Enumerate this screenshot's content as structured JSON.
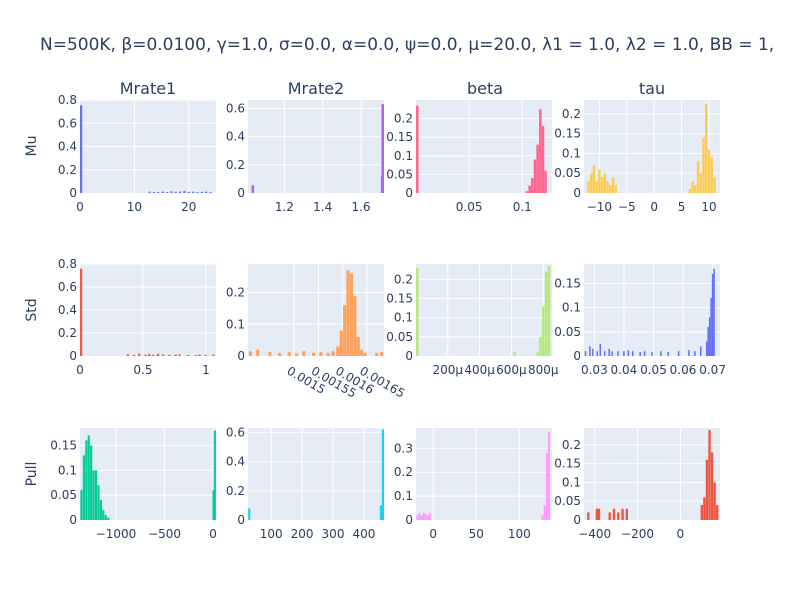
{
  "title": "N=500K, β=0.0100, γ=1.0, σ=0.0,  α=0.0, ψ=0.0, μ=20.0, λ1 = 1.0, λ2 = 1.0, BB = 1,",
  "column_titles": [
    "Mrate1",
    "Mrate2",
    "beta",
    "tau"
  ],
  "row_titles": [
    "Mu",
    "Std",
    "Pull"
  ],
  "colors": {
    "plot_bg": "#E5ECF6",
    "grid": "#ffffff",
    "text": "#2a3f5f"
  },
  "chart_data": [
    {
      "type": "bar",
      "name": "Mu-Mrate1",
      "row": 0,
      "col": 0,
      "color": "#636efa",
      "xlim": [
        0,
        25
      ],
      "ylim": [
        0,
        0.8
      ],
      "bar_width": 0.4,
      "xticks": [
        {
          "v": 0,
          "t": "0"
        },
        {
          "v": 10,
          "t": "10"
        },
        {
          "v": 20,
          "t": "20"
        }
      ],
      "yticks": [
        {
          "v": 0,
          "t": "0"
        },
        {
          "v": 0.2,
          "t": "0.2"
        },
        {
          "v": 0.4,
          "t": "0.4"
        },
        {
          "v": 0.6,
          "t": "0.6"
        },
        {
          "v": 0.8,
          "t": "0.8"
        }
      ],
      "x": [
        0.2,
        12.8,
        13.6,
        14.4,
        15.2,
        16.0,
        16.8,
        17.6,
        18.4,
        19.2,
        20.0,
        20.8,
        21.6,
        22.4,
        23.2,
        24.0
      ],
      "values": [
        0.755,
        0.012,
        0.008,
        0.01,
        0.012,
        0.008,
        0.015,
        0.01,
        0.012,
        0.018,
        0.01,
        0.012,
        0.008,
        0.01,
        0.012,
        0.008
      ]
    },
    {
      "type": "bar",
      "name": "Mu-Mrate2",
      "row": 0,
      "col": 1,
      "color": "#ab63fa",
      "xlim": [
        1.01,
        1.72
      ],
      "ylim": [
        0,
        0.66
      ],
      "bar_width": 0.013,
      "xticks": [
        {
          "v": 1.2,
          "t": "1.2"
        },
        {
          "v": 1.4,
          "t": "1.4"
        },
        {
          "v": 1.6,
          "t": "1.6"
        }
      ],
      "yticks": [
        {
          "v": 0,
          "t": "0"
        },
        {
          "v": 0.2,
          "t": "0.2"
        },
        {
          "v": 0.4,
          "t": "0.4"
        },
        {
          "v": 0.6,
          "t": "0.6"
        }
      ],
      "x": [
        1.035,
        1.71,
        1.718
      ],
      "values": [
        0.055,
        0.125,
        0.63
      ]
    },
    {
      "type": "bar",
      "name": "Mu-beta",
      "row": 0,
      "col": 2,
      "color": "#ff6692",
      "xlim": [
        0.0,
        0.128
      ],
      "ylim": [
        0,
        0.25
      ],
      "bar_width": 0.0024,
      "xticks": [
        {
          "v": 0.05,
          "t": "0.05"
        },
        {
          "v": 0.1,
          "t": "0.1"
        }
      ],
      "yticks": [
        {
          "v": 0,
          "t": "0"
        },
        {
          "v": 0.05,
          "t": "0.05"
        },
        {
          "v": 0.1,
          "t": "0.1"
        },
        {
          "v": 0.15,
          "t": "0.15"
        },
        {
          "v": 0.2,
          "t": "0.2"
        }
      ],
      "x": [
        0.0012,
        0.1045,
        0.107,
        0.1095,
        0.112,
        0.1145,
        0.117,
        0.1195,
        0.122
      ],
      "values": [
        0.235,
        0.005,
        0.02,
        0.04,
        0.09,
        0.13,
        0.225,
        0.18,
        0.06
      ]
    },
    {
      "type": "bar",
      "name": "Mu-tau",
      "row": 0,
      "col": 3,
      "color": "#fecb52",
      "xlim": [
        -12.8,
        12
      ],
      "ylim": [
        0,
        0.235
      ],
      "bar_width": 0.44,
      "xticks": [
        {
          "v": -10,
          "t": "−10"
        },
        {
          "v": -5,
          "t": "−5"
        },
        {
          "v": 0,
          "t": "0"
        },
        {
          "v": 5,
          "t": "5"
        },
        {
          "v": 10,
          "t": "10"
        }
      ],
      "yticks": [
        {
          "v": 0,
          "t": "0"
        },
        {
          "v": 0.05,
          "t": "0.05"
        },
        {
          "v": 0.1,
          "t": "0.1"
        },
        {
          "v": 0.15,
          "t": "0.15"
        },
        {
          "v": 0.2,
          "t": "0.2"
        }
      ],
      "x": [
        -12.0,
        -11.5,
        -11.0,
        -10.5,
        -10.0,
        -9.5,
        -9.0,
        -8.5,
        -8.0,
        -7.5,
        -7.0,
        6.5,
        7.0,
        7.5,
        8.0,
        8.5,
        9.0,
        9.5,
        10.0,
        10.5,
        11.0
      ],
      "values": [
        0.03,
        0.05,
        0.07,
        0.03,
        0.06,
        0.04,
        0.05,
        0.03,
        0.02,
        0.04,
        0.02,
        0.01,
        0.03,
        0.02,
        0.08,
        0.05,
        0.14,
        0.225,
        0.11,
        0.09,
        0.04
      ]
    },
    {
      "type": "bar",
      "name": "Std-Mrate1",
      "row": 1,
      "col": 0,
      "color": "#ef553b",
      "xlim": [
        0,
        1.08
      ],
      "ylim": [
        0,
        0.8
      ],
      "bar_width": 0.017,
      "xticks": [
        {
          "v": 0,
          "t": "0"
        },
        {
          "v": 0.5,
          "t": "0.5"
        },
        {
          "v": 1,
          "t": "1"
        }
      ],
      "yticks": [
        {
          "v": 0,
          "t": "0"
        },
        {
          "v": 0.2,
          "t": "0.2"
        },
        {
          "v": 0.4,
          "t": "0.4"
        },
        {
          "v": 0.6,
          "t": "0.6"
        },
        {
          "v": 0.8,
          "t": "0.8"
        }
      ],
      "x": [
        0.009,
        0.38,
        0.43,
        0.47,
        0.52,
        0.55,
        0.58,
        0.62,
        0.66,
        0.71,
        0.76,
        0.79,
        0.86,
        0.92,
        0.95,
        1.0,
        1.06
      ],
      "values": [
        0.76,
        0.015,
        0.01,
        0.02,
        0.012,
        0.018,
        0.01,
        0.02,
        0.012,
        0.01,
        0.012,
        0.015,
        0.01,
        0.008,
        0.012,
        0.01,
        0.012
      ]
    },
    {
      "type": "bar",
      "name": "Std-Mrate2",
      "row": 1,
      "col": 1,
      "color": "#ffa15a",
      "xlim": [
        0.001405,
        0.001685
      ],
      "ylim": [
        0,
        0.29
      ],
      "bar_width": 6.5e-06,
      "tick_angle": 30,
      "xticks": [
        {
          "v": 0.0015,
          "t": "0.0015"
        },
        {
          "v": 0.00155,
          "t": "0.00155"
        },
        {
          "v": 0.0016,
          "t": "0.0016"
        },
        {
          "v": 0.00165,
          "t": "0.00165"
        }
      ],
      "yticks": [
        {
          "v": 0,
          "t": "0"
        },
        {
          "v": 0.1,
          "t": "0.1"
        },
        {
          "v": 0.2,
          "t": "0.2"
        }
      ],
      "x": [
        0.00141,
        0.001425,
        0.00145,
        0.00147,
        0.00149,
        0.001505,
        0.00152,
        0.00154,
        0.001555,
        0.00157,
        0.00158,
        0.00159,
        0.001597,
        0.001604,
        0.001611,
        0.001618,
        0.001625,
        0.001632,
        0.001639,
        0.001646,
        0.00167,
        0.00168
      ],
      "values": [
        0.015,
        0.02,
        0.012,
        0.01,
        0.012,
        0.008,
        0.015,
        0.01,
        0.012,
        0.01,
        0.015,
        0.03,
        0.08,
        0.16,
        0.27,
        0.26,
        0.19,
        0.06,
        0.02,
        0.01,
        0.01,
        0.012
      ]
    },
    {
      "type": "bar",
      "name": "Std-beta",
      "row": 1,
      "col": 2,
      "color": "#b6e880",
      "xlim": [
        0.0,
        0.000855
      ],
      "ylim": [
        0,
        0.24
      ],
      "bar_width": 1.6e-05,
      "xticks": [
        {
          "v": 0.0002,
          "t": "200μ"
        },
        {
          "v": 0.0004,
          "t": "400μ"
        },
        {
          "v": 0.0006,
          "t": "600μ"
        },
        {
          "v": 0.0008,
          "t": "800μ"
        }
      ],
      "yticks": [
        {
          "v": 0,
          "t": "0"
        },
        {
          "v": 0.05,
          "t": "0.05"
        },
        {
          "v": 0.1,
          "t": "0.1"
        },
        {
          "v": 0.15,
          "t": "0.15"
        },
        {
          "v": 0.2,
          "t": "0.2"
        }
      ],
      "x": [
        8e-06,
        0.00062,
        0.000765,
        0.000782,
        0.0008,
        0.000818,
        0.000836
      ],
      "values": [
        0.23,
        0.01,
        0.01,
        0.05,
        0.13,
        0.22,
        0.235
      ]
    },
    {
      "type": "bar",
      "name": "Std-tau",
      "row": 1,
      "col": 3,
      "color": "#636efa",
      "xlim": [
        0.0265,
        0.0725
      ],
      "ylim": [
        0,
        0.19
      ],
      "bar_width": 0.0004,
      "xticks": [
        {
          "v": 0.03,
          "t": "0.03"
        },
        {
          "v": 0.04,
          "t": "0.04"
        },
        {
          "v": 0.05,
          "t": "0.05"
        },
        {
          "v": 0.06,
          "t": "0.06"
        },
        {
          "v": 0.07,
          "t": "0.07"
        }
      ],
      "yticks": [
        {
          "v": 0,
          "t": "0"
        },
        {
          "v": 0.05,
          "t": "0.05"
        },
        {
          "v": 0.1,
          "t": "0.1"
        },
        {
          "v": 0.15,
          "t": "0.15"
        }
      ],
      "x": [
        0.027,
        0.0285,
        0.0295,
        0.031,
        0.032,
        0.0335,
        0.035,
        0.036,
        0.038,
        0.04,
        0.0415,
        0.043,
        0.0455,
        0.047,
        0.0495,
        0.0525,
        0.055,
        0.0585,
        0.062,
        0.064,
        0.066,
        0.068,
        0.0685,
        0.069,
        0.0695,
        0.07,
        0.0705
      ],
      "values": [
        0.01,
        0.02,
        0.015,
        0.01,
        0.025,
        0.01,
        0.015,
        0.01,
        0.01,
        0.01,
        0.012,
        0.01,
        0.008,
        0.01,
        0.008,
        0.01,
        0.008,
        0.01,
        0.012,
        0.01,
        0.02,
        0.03,
        0.06,
        0.08,
        0.12,
        0.17,
        0.18
      ]
    },
    {
      "type": "bar",
      "name": "Pull-Mrate1",
      "row": 2,
      "col": 0,
      "color": "#00cc96",
      "xlim": [
        -1370,
        30
      ],
      "ylim": [
        0,
        0.185
      ],
      "bar_width": 22,
      "xticks": [
        {
          "v": -1000,
          "t": "−1000"
        },
        {
          "v": -500,
          "t": "−500"
        },
        {
          "v": 0,
          "t": "0"
        }
      ],
      "yticks": [
        {
          "v": 0,
          "t": "0"
        },
        {
          "v": 0.05,
          "t": "0.05"
        },
        {
          "v": 0.1,
          "t": "0.1"
        },
        {
          "v": 0.15,
          "t": "0.15"
        }
      ],
      "x": [
        -1355,
        -1330,
        -1305,
        -1280,
        -1255,
        -1230,
        -1205,
        -1180,
        -1155,
        -1130,
        -1105,
        -1080,
        5,
        18
      ],
      "values": [
        0.06,
        0.13,
        0.16,
        0.17,
        0.15,
        0.1,
        0.1,
        0.07,
        0.04,
        0.02,
        0.01,
        0.005,
        0.06,
        0.18
      ]
    },
    {
      "type": "bar",
      "name": "Pull-Mrate2",
      "row": 2,
      "col": 1,
      "color": "#19d3f3",
      "xlim": [
        25,
        465
      ],
      "ylim": [
        0,
        0.63
      ],
      "bar_width": 7,
      "xticks": [
        {
          "v": 100,
          "t": "100"
        },
        {
          "v": 200,
          "t": "200"
        },
        {
          "v": 300,
          "t": "300"
        },
        {
          "v": 400,
          "t": "400"
        }
      ],
      "yticks": [
        {
          "v": 0,
          "t": "0"
        },
        {
          "v": 0.2,
          "t": "0.2"
        },
        {
          "v": 0.4,
          "t": "0.4"
        },
        {
          "v": 0.6,
          "t": "0.6"
        }
      ],
      "x": [
        29,
        455,
        462
      ],
      "values": [
        0.08,
        0.1,
        0.62
      ]
    },
    {
      "type": "bar",
      "name": "Pull-beta",
      "row": 2,
      "col": 2,
      "color": "#ff97ff",
      "xlim": [
        -20,
        138
      ],
      "ylim": [
        0,
        0.385
      ],
      "bar_width": 2.2,
      "xticks": [
        {
          "v": 0,
          "t": "0"
        },
        {
          "v": 50,
          "t": "50"
        },
        {
          "v": 100,
          "t": "100"
        }
      ],
      "yticks": [
        {
          "v": 0,
          "t": "0"
        },
        {
          "v": 0.1,
          "t": "0.1"
        },
        {
          "v": 0.2,
          "t": "0.2"
        },
        {
          "v": 0.3,
          "t": "0.3"
        }
      ],
      "x": [
        -18.5,
        -16,
        -13.5,
        -11,
        -8.5,
        -6,
        -3.5,
        127,
        129.5,
        132,
        134.5
      ],
      "values": [
        0.02,
        0.03,
        0.02,
        0.03,
        0.025,
        0.02,
        0.03,
        0.02,
        0.06,
        0.28,
        0.37
      ]
    },
    {
      "type": "bar",
      "name": "Pull-tau",
      "row": 2,
      "col": 3,
      "color": "#ef553b",
      "xlim": [
        -450,
        185
      ],
      "ylim": [
        0,
        0.245
      ],
      "bar_width": 11,
      "xticks": [
        {
          "v": -400,
          "t": "−400"
        },
        {
          "v": -200,
          "t": "−200"
        },
        {
          "v": 0,
          "t": "0"
        }
      ],
      "yticks": [
        {
          "v": 0,
          "t": "0"
        },
        {
          "v": 0.05,
          "t": "0.05"
        },
        {
          "v": 0.1,
          "t": "0.1"
        },
        {
          "v": 0.15,
          "t": "0.15"
        },
        {
          "v": 0.2,
          "t": "0.2"
        }
      ],
      "x": [
        -430,
        -390,
        -380,
        -330,
        -310,
        -290,
        -270,
        -250,
        100,
        112,
        124,
        136,
        148,
        160,
        172
      ],
      "values": [
        0.02,
        0.03,
        0.03,
        0.02,
        0.03,
        0.02,
        0.03,
        0.03,
        0.04,
        0.06,
        0.16,
        0.24,
        0.18,
        0.1,
        0.04
      ]
    }
  ]
}
